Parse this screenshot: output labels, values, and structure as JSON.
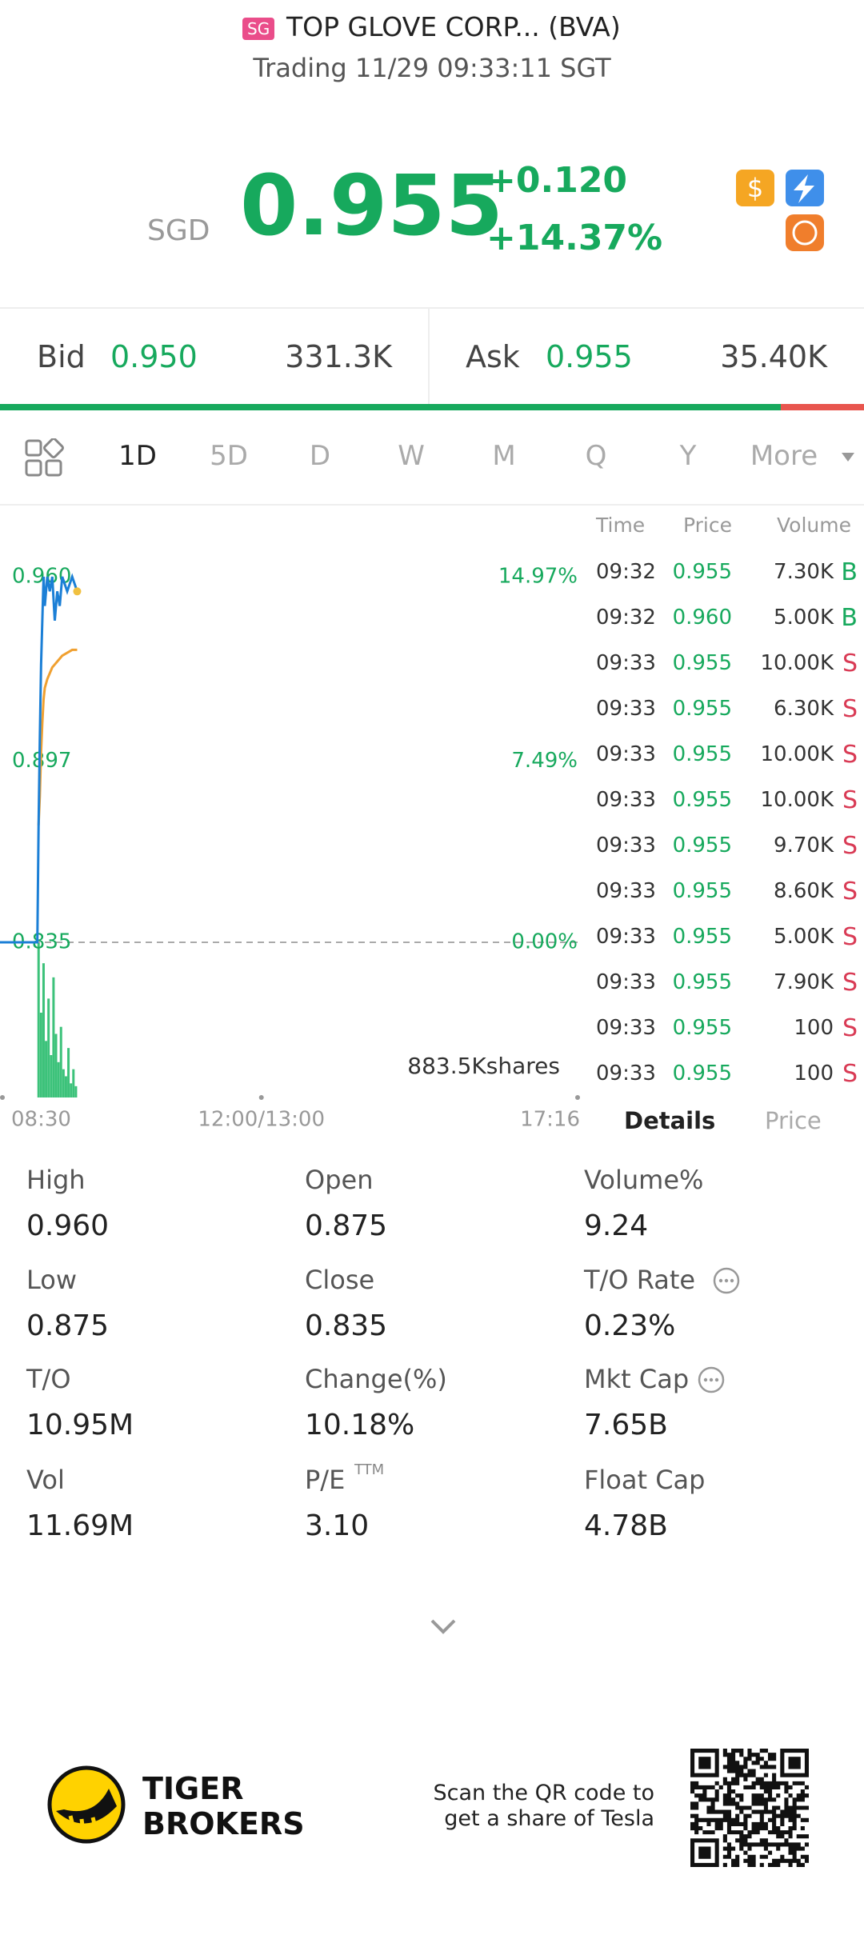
{
  "header": {
    "market_badge": "SG",
    "title": "TOP GLOVE CORP... (BVA)",
    "status": "Trading 11/29 09:33:11 SGT"
  },
  "quote": {
    "currency": "SGD",
    "price": "0.955",
    "change": "+0.120",
    "change_pct": "+14.37%"
  },
  "bid_ask": {
    "bid_label": "Bid",
    "bid_price": "0.950",
    "bid_size": "331.3K",
    "ask_label": "Ask",
    "ask_price": "0.955",
    "ask_size": "35.40K"
  },
  "tabs": [
    "1D",
    "5D",
    "D",
    "W",
    "M",
    "Q",
    "Y",
    "More"
  ],
  "chart": {
    "ylim": [
      0.835,
      0.96
    ],
    "yticks": [
      {
        "value": 0.96,
        "label": "0.960"
      },
      {
        "value": 0.897,
        "label": "0.897"
      },
      {
        "value": 0.835,
        "label": "0.835"
      }
    ],
    "pct_ticks": [
      "14.97%",
      "7.49%",
      "0.00%"
    ],
    "xlim": [
      0,
      466
    ],
    "xticks": [
      {
        "value": 0,
        "label": "08:30"
      },
      {
        "value": 210,
        "label": "12:00/13:00"
      },
      {
        "value": 466,
        "label": "17:16"
      }
    ],
    "price": {
      "color": "#1b7fd6",
      "x": [
        0,
        30,
        31,
        32,
        33,
        34,
        35,
        36,
        38,
        40,
        42,
        44,
        46,
        48,
        50,
        54,
        58,
        62
      ],
      "values": [
        0.835,
        0.835,
        0.875,
        0.905,
        0.93,
        0.945,
        0.96,
        0.95,
        0.96,
        0.955,
        0.96,
        0.945,
        0.955,
        0.95,
        0.96,
        0.955,
        0.96,
        0.955
      ]
    },
    "avg": {
      "color": "#f0a030",
      "x": [
        0,
        30,
        31,
        32,
        33,
        34,
        35,
        36,
        38,
        40,
        42,
        44,
        46,
        48,
        50,
        54,
        58,
        62
      ],
      "values": [
        null,
        null,
        0.875,
        0.885,
        0.9,
        0.91,
        0.918,
        0.922,
        0.925,
        0.927,
        0.929,
        0.93,
        0.931,
        0.932,
        0.933,
        0.934,
        0.935,
        0.935
      ]
    },
    "volume": {
      "color": "#3cc27a",
      "x": [
        31,
        33,
        35,
        37,
        39,
        41,
        43,
        45,
        47,
        49,
        51,
        53,
        55,
        57,
        59,
        61
      ],
      "values": [
        110,
        60,
        95,
        40,
        70,
        30,
        85,
        45,
        25,
        50,
        20,
        15,
        35,
        10,
        20,
        8
      ]
    },
    "volume_ylim": [
      0,
      120
    ],
    "volume_label": "883.5Kshares"
  },
  "trades": {
    "headers": [
      "Time",
      "Price",
      "Volume"
    ],
    "rows": [
      [
        "09:32",
        "0.955",
        "7.30K",
        "B"
      ],
      [
        "09:32",
        "0.960",
        "5.00K",
        "B"
      ],
      [
        "09:33",
        "0.955",
        "10.00K",
        "S"
      ],
      [
        "09:33",
        "0.955",
        "6.30K",
        "S"
      ],
      [
        "09:33",
        "0.955",
        "10.00K",
        "S"
      ],
      [
        "09:33",
        "0.955",
        "10.00K",
        "S"
      ],
      [
        "09:33",
        "0.955",
        "9.70K",
        "S"
      ],
      [
        "09:33",
        "0.955",
        "8.60K",
        "S"
      ],
      [
        "09:33",
        "0.955",
        "5.00K",
        "S"
      ],
      [
        "09:33",
        "0.955",
        "7.90K",
        "S"
      ],
      [
        "09:33",
        "0.955",
        "100",
        "S"
      ],
      [
        "09:33",
        "0.955",
        "100",
        "S"
      ]
    ]
  },
  "detail_tabs": [
    "Details",
    "Price"
  ],
  "stats": [
    {
      "label": "High",
      "value": "0.960"
    },
    {
      "label": "Open",
      "value": "0.875"
    },
    {
      "label": "Volume%",
      "value": "9.24"
    },
    {
      "label": "Low",
      "value": "0.875"
    },
    {
      "label": "Close",
      "value": "0.835"
    },
    {
      "label": "T/O Rate",
      "value": "0.23%",
      "info": true
    },
    {
      "label": "T/O",
      "value": "10.95M"
    },
    {
      "label": "Change(%)",
      "value": "10.18%"
    },
    {
      "label": "Mkt Cap",
      "value": "7.65B",
      "info": true
    },
    {
      "label": "Vol",
      "value": "11.69M"
    },
    {
      "label": "P/E",
      "sup": "TTM",
      "value": "3.10"
    },
    {
      "label": "Float Cap",
      "value": "4.78B"
    }
  ],
  "footer": {
    "brand": [
      "TIGER",
      "BROKERS"
    ],
    "promo": [
      "Scan the QR code to",
      "get a share of Tesla"
    ]
  }
}
